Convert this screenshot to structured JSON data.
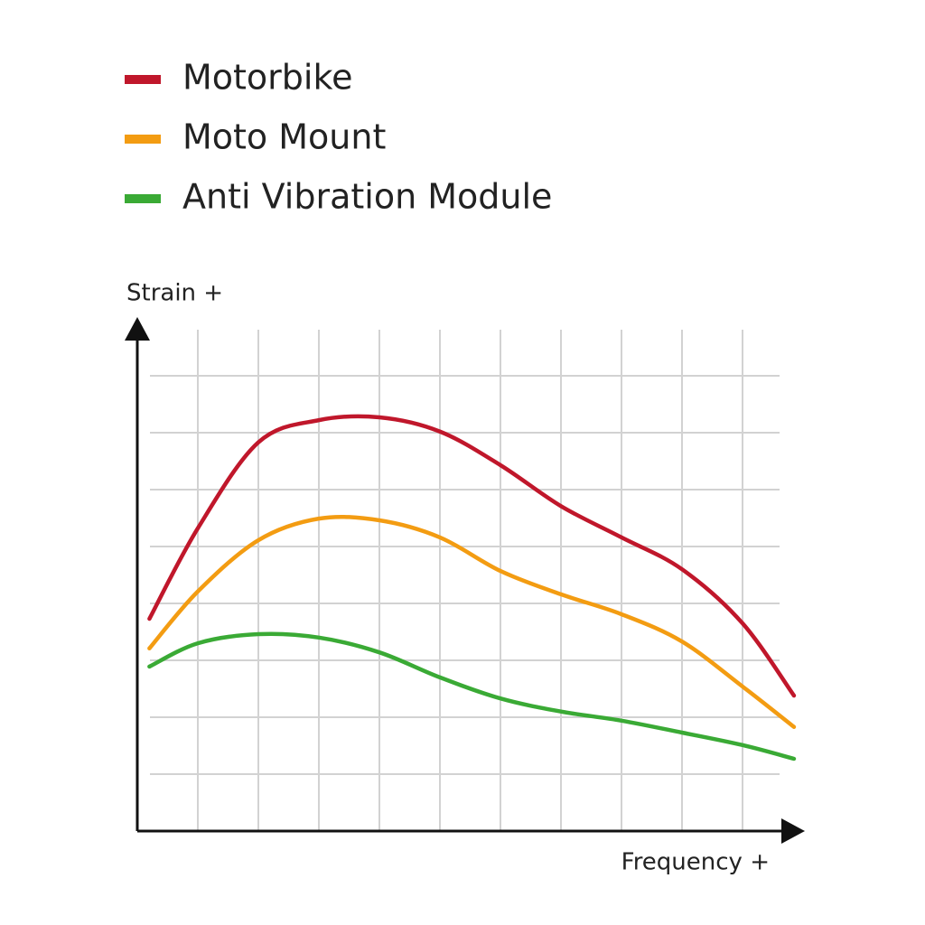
{
  "chart_data": {
    "type": "line",
    "x_label": "Frequency +",
    "y_label": "Strain +",
    "x": [
      0.2,
      1,
      2,
      3,
      4,
      5,
      6,
      7,
      8,
      9,
      10,
      10.85
    ],
    "series": [
      {
        "name": "Motorbike",
        "color": "#c0172b",
        "values": [
          3.73,
          5.32,
          6.83,
          7.22,
          7.27,
          7.02,
          6.43,
          5.71,
          5.16,
          4.6,
          3.65,
          2.38
        ]
      },
      {
        "name": "Moto Mount",
        "color": "#f39c12",
        "values": [
          3.21,
          4.21,
          5.11,
          5.49,
          5.46,
          5.16,
          4.57,
          4.16,
          3.81,
          3.33,
          2.54,
          1.83
        ]
      },
      {
        "name": "Anti Vibration Module",
        "color": "#3aaa35",
        "values": [
          2.89,
          3.3,
          3.46,
          3.4,
          3.14,
          2.7,
          2.33,
          2.1,
          1.94,
          1.73,
          1.51,
          1.27
        ]
      }
    ],
    "xlim": [
      0,
      11
    ],
    "ylim": [
      0,
      9
    ],
    "xticks": [
      1,
      2,
      3,
      4,
      5,
      6,
      7,
      8,
      9,
      10
    ],
    "yticks": [
      1,
      2,
      3,
      4,
      5,
      6,
      7,
      8
    ],
    "grid": true
  }
}
